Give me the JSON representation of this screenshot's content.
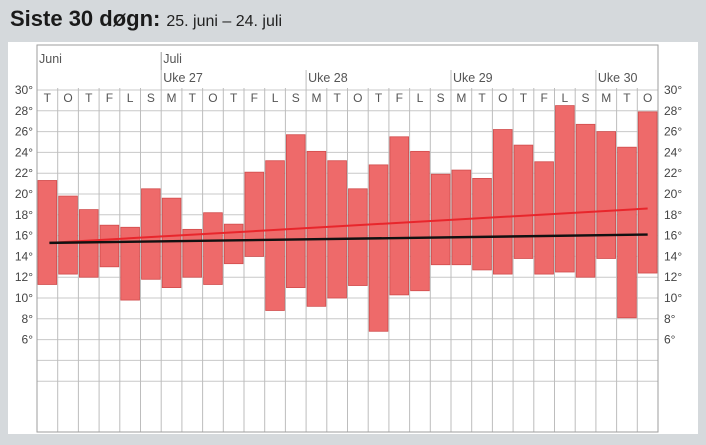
{
  "header": {
    "title": "Siste 30 døgn:",
    "subtitle": "25. juni – 24. juli"
  },
  "chart_data": {
    "type": "bar",
    "title": "Siste 30 døgn:",
    "subtitle": "25. juni – 24. juli",
    "categories": [
      "T",
      "O",
      "T",
      "F",
      "L",
      "S",
      "M",
      "T",
      "O",
      "T",
      "F",
      "L",
      "S",
      "M",
      "T",
      "O",
      "T",
      "F",
      "L",
      "S",
      "M",
      "T",
      "O",
      "T",
      "F",
      "L",
      "S",
      "M",
      "T",
      "O"
    ],
    "month_labels": [
      {
        "label": "Juni",
        "day_index": 0
      },
      {
        "label": "Juli",
        "day_index": 6
      }
    ],
    "week_labels": [
      {
        "label": "Uke 27",
        "day_index": 6
      },
      {
        "label": "Uke 28",
        "day_index": 13
      },
      {
        "label": "Uke 29",
        "day_index": 20
      },
      {
        "label": "Uke 30",
        "day_index": 27
      }
    ],
    "series": [
      {
        "type": "range-bar",
        "min": [
          11.3,
          12.3,
          12.0,
          13.0,
          9.8,
          11.8,
          11.0,
          12.0,
          11.3,
          13.3,
          14.0,
          8.8,
          11.0,
          9.2,
          10.0,
          11.2,
          6.8,
          10.3,
          10.7,
          13.2,
          13.2,
          12.7,
          12.3,
          13.8,
          12.3,
          12.5,
          12.0,
          13.8,
          8.1,
          12.4
        ],
        "max": [
          21.3,
          19.8,
          18.5,
          17.0,
          16.8,
          20.5,
          19.6,
          16.6,
          18.2,
          17.1,
          22.1,
          23.2,
          25.7,
          24.1,
          23.2,
          20.5,
          22.8,
          25.5,
          24.1,
          21.9,
          22.3,
          21.5,
          26.2,
          24.7,
          23.1,
          28.5,
          26.7,
          26.0,
          24.5,
          27.9
        ],
        "color": "#ee6a6a"
      },
      {
        "type": "line",
        "start": 15.3,
        "end": 18.6,
        "color": "#e8262c"
      },
      {
        "type": "line",
        "start": 15.3,
        "end": 16.1,
        "color": "#111111"
      }
    ],
    "y_ticks_left": [
      "30°",
      "28°",
      "26°",
      "24°",
      "22°",
      "20°",
      "18°",
      "16°",
      "14°",
      "12°",
      "10°",
      "8°",
      "6°"
    ],
    "y_ticks_right": [
      "30°",
      "28°",
      "26°",
      "24°",
      "22°",
      "20°",
      "18°",
      "16°",
      "14°",
      "12°",
      "10°",
      "8°",
      "6°"
    ],
    "ylim": [
      0,
      31
    ],
    "grid": true,
    "colors": {
      "background": "#d5d9dc",
      "plot": "#ffffff",
      "grid": "#c8c8c8",
      "bar": "#ee6a6a",
      "bar_edge": "#d14c4c"
    }
  }
}
